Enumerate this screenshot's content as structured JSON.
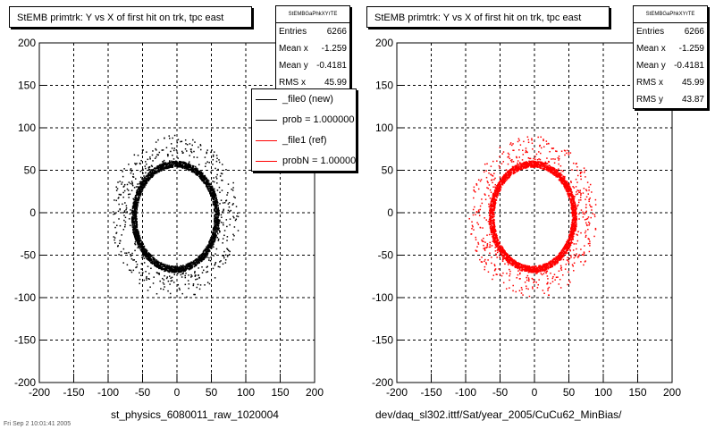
{
  "chart_data": [
    {
      "type": "scatter",
      "title": "StEMB primtrk: Y vs X of first hit on trk, tpc east",
      "xlabel": "st_physics_6080011_raw_1020004",
      "ylabel": "",
      "xlim": [
        -200,
        200
      ],
      "ylim": [
        -200,
        200
      ],
      "xticks": [
        "-200",
        "-150",
        "-100",
        "-50",
        "0",
        "50",
        "100",
        "150",
        "200"
      ],
      "yticks": [
        "-200",
        "-150",
        "-100",
        "-50",
        "0",
        "50",
        "100",
        "150",
        "200"
      ],
      "grid": true,
      "color": "#000000",
      "ring": {
        "center_x": -3,
        "center_y": -4,
        "radius_x": 60,
        "radius_y": 62
      },
      "stats": {
        "name": "StEMBGaPhkXYrTE",
        "rows": [
          {
            "label": "Entries",
            "value": "6266"
          },
          {
            "label": "Mean x",
            "value": "-1.259"
          },
          {
            "label": "Mean y",
            "value": "-0.4181"
          },
          {
            "label": "RMS x",
            "value": "45.99"
          }
        ]
      },
      "legend": {
        "placement": "right",
        "entries": [
          {
            "label": "_file0 (new)",
            "color": "#000000"
          },
          {
            "label": "prob = 1.000000",
            "color": "#000000"
          },
          {
            "label": "_file1 (ref)",
            "color": "#ff0000"
          },
          {
            "label": "probN = 1.000000",
            "color": "#ff0000"
          }
        ]
      }
    },
    {
      "type": "scatter",
      "title": "StEMB primtrk: Y vs X of first hit on trk, tpc east",
      "xlabel": "dev/daq_sl302.ittf/Sat/year_2005/CuCu62_MinBias/",
      "ylabel": "",
      "xlim": [
        -200,
        200
      ],
      "ylim": [
        -200,
        200
      ],
      "xticks": [
        "-200",
        "-150",
        "-100",
        "-50",
        "0",
        "50",
        "100",
        "150",
        "200"
      ],
      "yticks": [
        "-200",
        "-150",
        "-100",
        "-50",
        "0",
        "50",
        "100",
        "150",
        "200"
      ],
      "grid": true,
      "color": "#ff0000",
      "ring": {
        "center_x": -3,
        "center_y": -4,
        "radius_x": 60,
        "radius_y": 62
      },
      "stats": {
        "name": "StEMBGaPhkXYrTE",
        "rows": [
          {
            "label": "Entries",
            "value": "6266"
          },
          {
            "label": "Mean x",
            "value": "-1.259"
          },
          {
            "label": "Mean y",
            "value": "-0.4181"
          },
          {
            "label": "RMS x",
            "value": "45.99"
          },
          {
            "label": "RMS y",
            "value": "43.87"
          }
        ]
      }
    }
  ],
  "footer": "Fri Sep 2 10:01:41 2005"
}
